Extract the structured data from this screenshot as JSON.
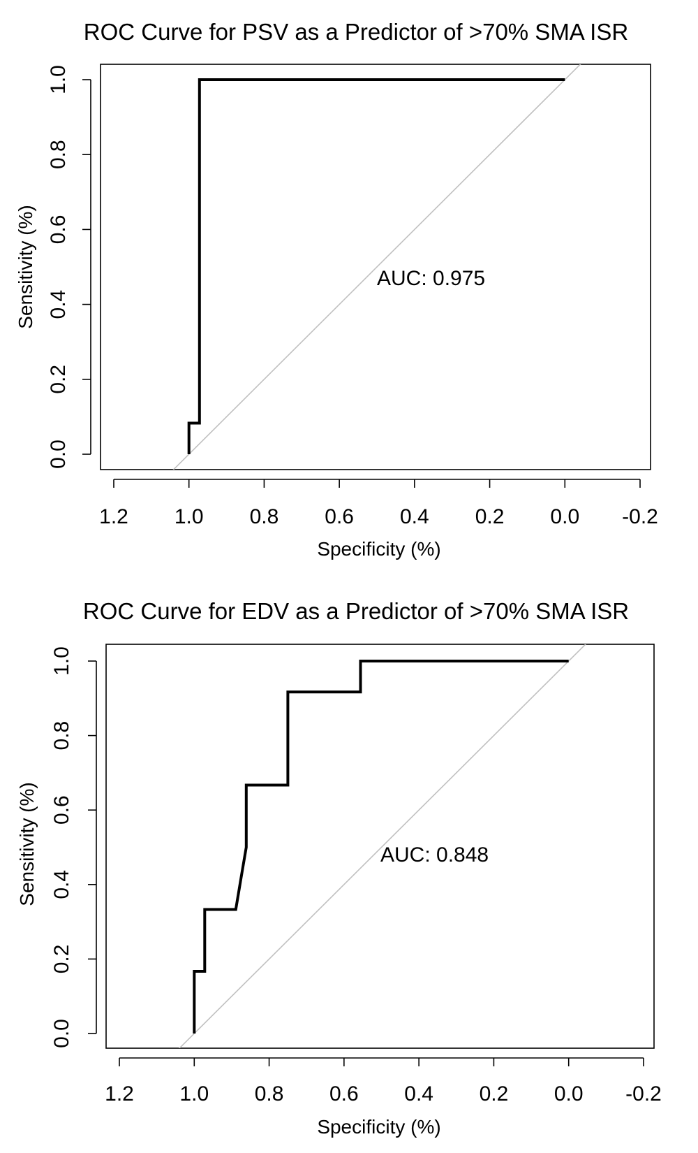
{
  "chart_data": [
    {
      "type": "line",
      "title": "ROC Curve for PSV as a Predictor of >70% SMA ISR",
      "xlabel": "Specificity (%)",
      "ylabel": "Sensitivity (%)",
      "xlim": [
        1.2,
        -0.2
      ],
      "ylim": [
        0.0,
        1.0
      ],
      "x_reversed": true,
      "xticks": [
        1.2,
        1.0,
        0.8,
        0.6,
        0.4,
        0.2,
        0.0,
        -0.2
      ],
      "xtick_labels": [
        "1.2",
        "1.0",
        "0.8",
        "0.6",
        "0.4",
        "0.2",
        "0.0",
        "-0.2"
      ],
      "yticks": [
        0.0,
        0.2,
        0.4,
        0.6,
        0.8,
        1.0
      ],
      "ytick_labels": [
        "0.0",
        "0.2",
        "0.4",
        "0.6",
        "0.8",
        "1.0"
      ],
      "grid": false,
      "annotation": "AUC: 0.975",
      "reference_line": {
        "from": [
          1.0,
          0.0
        ],
        "to": [
          0.0,
          1.0
        ],
        "color": "#c0c0c0"
      },
      "series": [
        {
          "color": "#000000",
          "x": [
            1.0,
            1.0,
            0.972,
            0.972,
            0.972,
            0.0
          ],
          "y": [
            0.0,
            0.083,
            0.083,
            1.0,
            1.0,
            1.0
          ]
        }
      ]
    },
    {
      "type": "line",
      "title": "ROC Curve for EDV as a Predictor of >70% SMA ISR",
      "xlabel": "Specificity (%)",
      "ylabel": "Sensitivity (%)",
      "xlim": [
        1.2,
        -0.2
      ],
      "ylim": [
        0.0,
        1.0
      ],
      "x_reversed": true,
      "xticks": [
        1.2,
        1.0,
        0.8,
        0.6,
        0.4,
        0.2,
        0.0,
        -0.2
      ],
      "xtick_labels": [
        "1.2",
        "1.0",
        "0.8",
        "0.6",
        "0.4",
        "0.2",
        "0.0",
        "-0.2"
      ],
      "yticks": [
        0.0,
        0.2,
        0.4,
        0.6,
        0.8,
        1.0
      ],
      "ytick_labels": [
        "0.0",
        "0.2",
        "0.4",
        "0.6",
        "0.8",
        "1.0"
      ],
      "grid": false,
      "annotation": "AUC: 0.848",
      "reference_line": {
        "from": [
          1.0,
          0.0
        ],
        "to": [
          0.0,
          1.0
        ],
        "color": "#c0c0c0"
      },
      "series": [
        {
          "color": "#000000",
          "x": [
            1.0,
            1.0,
            0.972,
            0.972,
            0.889,
            0.875,
            0.861,
            0.861,
            0.861,
            0.861,
            0.75,
            0.75,
            0.75,
            0.75,
            0.75,
            0.556,
            0.556,
            0.556,
            0.0
          ],
          "y": [
            0.0,
            0.167,
            0.167,
            0.333,
            0.333,
            0.417,
            0.5,
            0.583,
            0.667,
            0.667,
            0.667,
            0.75,
            0.833,
            0.917,
            0.917,
            0.917,
            1.0,
            1.0,
            1.0
          ]
        }
      ]
    }
  ]
}
